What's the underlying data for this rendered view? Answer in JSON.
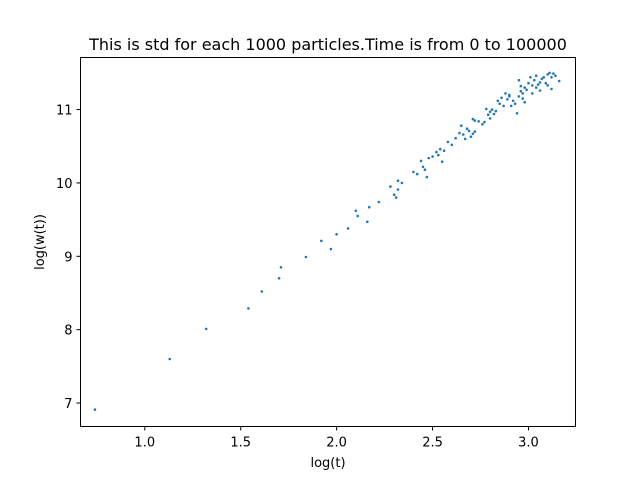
{
  "chart_data": {
    "type": "scatter",
    "title": "This is std for each 1000 particles.Time is from 0 to 100000",
    "xlabel": "log(t)",
    "ylabel": "log(w(t))",
    "xlim": [
      0.665,
      3.245
    ],
    "ylim": [
      6.68,
      11.71
    ],
    "xticks": [
      1.0,
      1.5,
      2.0,
      2.5,
      3.0
    ],
    "xtick_labels": [
      "1.0",
      "1.5",
      "2.0",
      "2.5",
      "3.0"
    ],
    "yticks": [
      7,
      8,
      9,
      10,
      11
    ],
    "ytick_labels": [
      "7",
      "8",
      "9",
      "10",
      "11"
    ],
    "grid": false,
    "marker_color": "#1f77b4",
    "series": [
      {
        "x": [
          0.74,
          1.13,
          1.32,
          1.54,
          1.61,
          1.7,
          1.71,
          1.84,
          1.92,
          1.97,
          2.0,
          2.06,
          2.1,
          2.11,
          2.16,
          2.17,
          2.22,
          2.28,
          2.3,
          2.31,
          2.32,
          2.32,
          2.34,
          2.4,
          2.42,
          2.44,
          2.45,
          2.46,
          2.47,
          2.48,
          2.5,
          2.52,
          2.53,
          2.54,
          2.55,
          2.56,
          2.58,
          2.6,
          2.62,
          2.64,
          2.65,
          2.66,
          2.67,
          2.68,
          2.69,
          2.7,
          2.71,
          2.71,
          2.72,
          2.72,
          2.74,
          2.76,
          2.77,
          2.78,
          2.79,
          2.8,
          2.8,
          2.81,
          2.82,
          2.83,
          2.84,
          2.85,
          2.86,
          2.87,
          2.88,
          2.89,
          2.9,
          2.9,
          2.91,
          2.92,
          2.93,
          2.94,
          2.95,
          2.95,
          2.96,
          2.96,
          2.97,
          2.97,
          2.98,
          2.98,
          2.99,
          3.0,
          3.01,
          3.02,
          3.02,
          3.03,
          3.04,
          3.04,
          3.05,
          3.06,
          3.06,
          3.07,
          3.08,
          3.09,
          3.1,
          3.1,
          3.11,
          3.12,
          3.12,
          3.13,
          3.14,
          3.16
        ],
        "y": [
          6.91,
          7.6,
          8.01,
          8.29,
          8.52,
          8.7,
          8.85,
          8.99,
          9.21,
          9.1,
          9.3,
          9.38,
          9.62,
          9.55,
          9.47,
          9.67,
          9.74,
          9.95,
          9.84,
          9.8,
          10.03,
          9.91,
          10.0,
          10.15,
          10.12,
          10.3,
          10.22,
          10.18,
          10.08,
          10.34,
          10.36,
          10.42,
          10.38,
          10.46,
          10.29,
          10.44,
          10.56,
          10.52,
          10.61,
          10.68,
          10.78,
          10.66,
          10.6,
          10.74,
          10.71,
          10.63,
          10.87,
          10.67,
          10.85,
          10.7,
          10.84,
          10.8,
          10.83,
          11.01,
          10.93,
          10.88,
          10.97,
          11.0,
          10.94,
          10.98,
          11.12,
          11.08,
          11.16,
          11.05,
          11.22,
          11.14,
          11.18,
          11.2,
          11.05,
          11.12,
          11.08,
          10.95,
          11.4,
          11.18,
          11.25,
          11.32,
          11.22,
          11.15,
          11.3,
          11.1,
          11.27,
          11.36,
          11.44,
          11.33,
          11.22,
          11.4,
          11.3,
          11.46,
          11.34,
          11.37,
          11.26,
          11.42,
          11.44,
          11.36,
          11.48,
          11.33,
          11.5,
          11.44,
          11.28,
          11.49,
          11.46,
          11.39
        ]
      }
    ]
  }
}
